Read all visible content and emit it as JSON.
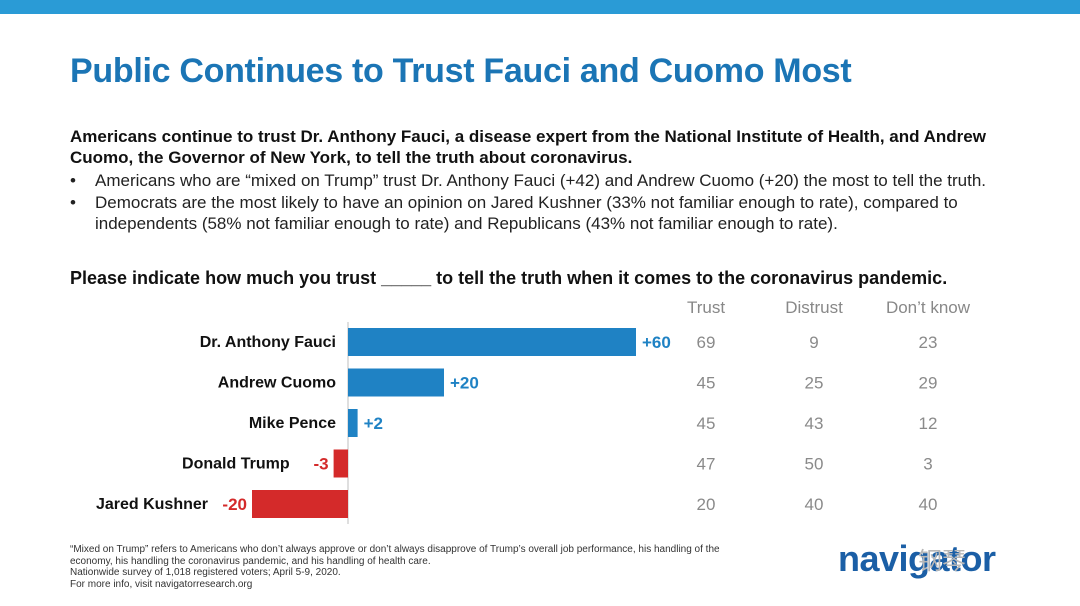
{
  "header": {
    "title": "Public Continues to Trust Fauci and Cuomo Most",
    "lead": "Americans continue to trust Dr. Anthony Fauci, a disease expert from the National Institute of Health, and Andrew Cuomo, the Governor of New York, to tell the truth about coronavirus.",
    "bullet_char": "•",
    "bullets": [
      "Americans who are “mixed on Trump” trust Dr. Anthony Fauci (+42) and Andrew Cuomo (+20) the most to tell the truth.",
      "Democrats are the most likely to have an opinion on Jared Kushner (33% not familiar enough to rate), compared to independents (58% not familiar enough to rate) and Republicans (43% not familiar enough to rate)."
    ],
    "question": "Please indicate how much you trust _____ to tell the truth when it comes to the coronavirus pandemic."
  },
  "table": {
    "columns": [
      "Trust",
      "Distrust",
      "Don’t know"
    ]
  },
  "chart_data": {
    "type": "bar",
    "orientation": "horizontal",
    "title": "Please indicate how much you trust _____ to tell the truth when it comes to the coronavirus pandemic.",
    "categories": [
      "Dr. Anthony Fauci",
      "Andrew Cuomo",
      "Mike Pence",
      "Donald Trump",
      "Jared Kushner"
    ],
    "values": [
      60,
      20,
      2,
      -3,
      -20
    ],
    "value_labels": [
      "+60",
      "+20",
      "+2",
      "-3",
      "-20"
    ],
    "positive_color": "#1f82c4",
    "negative_color": "#d42a2a",
    "table_values": {
      "Trust": [
        "69",
        "45",
        "45",
        "47",
        "20"
      ],
      "Distrust": [
        "9",
        "25",
        "43",
        "50",
        "40"
      ],
      "Don’t know": [
        "23",
        "29",
        "12",
        "3",
        "40"
      ]
    }
  },
  "footer": {
    "notes": [
      "“Mixed on Trump” refers to Americans who don’t always approve or don’t always disapprove of Trump’s overall job performance, his handling of the economy, his handling the coronavirus pandemic, and his handling of health care.",
      "Nationwide survey of 1,018 registered voters; April 5-9, 2020.",
      "For more info, visit navigatorresearch.org"
    ],
    "logo": "navigator",
    "watermark": "钢琴"
  },
  "colors": {
    "accent": "#2a9bd6",
    "title": "#1b75b5",
    "logo": "#1b5fa6"
  }
}
